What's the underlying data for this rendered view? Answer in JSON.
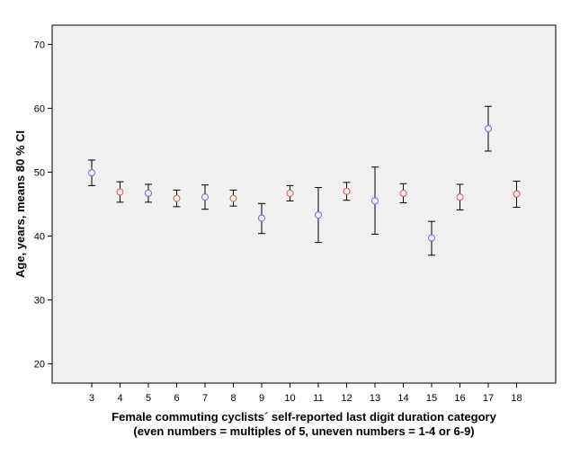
{
  "chart_data": {
    "type": "errorbar",
    "xlabel_line1": "Female commuting cyclists´ self-reported last digit duration category",
    "xlabel_line2": "(even numbers = multiples of 5, uneven numbers = 1-4 or 6-9)",
    "ylabel": "Age, years, means 80 % CI",
    "ylim": [
      17,
      73
    ],
    "yticks": [
      20,
      30,
      40,
      50,
      60,
      70
    ],
    "categories": [
      "3",
      "4",
      "5",
      "6",
      "7",
      "8",
      "9",
      "10",
      "11",
      "12",
      "13",
      "14",
      "15",
      "16",
      "17",
      "18"
    ],
    "means": [
      49.9,
      46.9,
      46.7,
      45.9,
      46.1,
      45.9,
      42.8,
      46.7,
      43.3,
      47.0,
      45.5,
      46.7,
      39.7,
      46.1,
      56.8,
      46.6
    ],
    "ci_lower": [
      47.9,
      45.3,
      45.3,
      44.6,
      44.2,
      44.7,
      40.4,
      45.5,
      39.0,
      45.6,
      40.3,
      45.2,
      37.0,
      44.1,
      53.3,
      44.5
    ],
    "ci_upper": [
      51.9,
      48.5,
      48.1,
      47.2,
      48.0,
      47.2,
      45.1,
      47.9,
      47.6,
      48.4,
      50.8,
      48.2,
      42.3,
      48.1,
      60.3,
      48.6
    ],
    "marker_colors": [
      "#6b6bd6",
      "#d85a5a",
      "#6b6bd6",
      "#d85a5a",
      "#6b6bd6",
      "#d85a5a",
      "#6b6bd6",
      "#d85a5a",
      "#6b6bd6",
      "#d85a5a",
      "#6b6bd6",
      "#d85a5a",
      "#6b6bd6",
      "#d85a5a",
      "#6b6bd6",
      "#d85a5a"
    ],
    "plot_background": "#f0f0f0",
    "grid": false
  }
}
